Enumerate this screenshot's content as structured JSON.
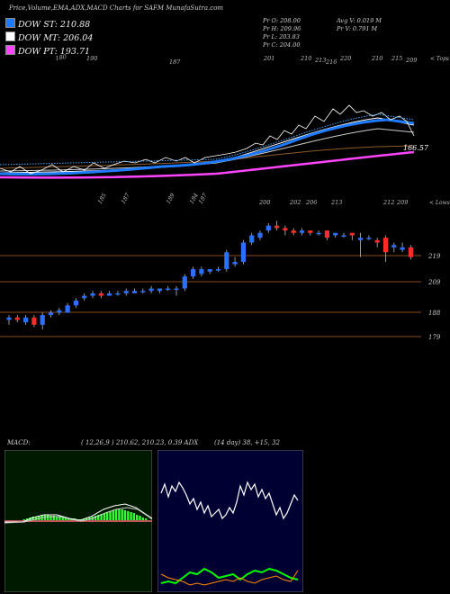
{
  "header": {
    "title": "Price,Volume,EMA,ADX,MACD Charts for SAFM MunafaSutra.com"
  },
  "legend": [
    {
      "label": "DOW ST: 210.88",
      "color": "#1e7bff"
    },
    {
      "label": "DOW MT: 206.04",
      "color": "#ffffff"
    },
    {
      "label": "DOW PT: 193.71",
      "color": "#ff44ff"
    }
  ],
  "ohlc": {
    "open": "Pr   O: 208.00",
    "high": "Pr   H: 209.96",
    "low": "Pr   L: 203.83",
    "close": "Pr   C: 204.00",
    "avg_volume": "Avg V: 0.019 M",
    "volume": "Pr   V: 0.791 M"
  },
  "top_panel": {
    "corner_label": "< Tops",
    "top_labels": [
      "180",
      "190",
      "187",
      "201",
      "210",
      "213",
      "216",
      "220",
      "210",
      "215",
      "209"
    ],
    "bottom_labels": [
      "185",
      "187",
      "189",
      "184",
      "187",
      "200",
      "202",
      "206",
      "213",
      "212",
      "209"
    ],
    "price_label": "166.57",
    "corner_label_bottom": "< Lows"
  },
  "price_panel": {
    "levels": [
      "219",
      "209",
      "188",
      "179"
    ]
  },
  "indicators": {
    "macd_label": "MACD:",
    "macd_values": "( 12,26,9 ) 210.62,  210.23,  0.39 ADX",
    "adx_values": "(14  day) 38,  +15,  32"
  },
  "chart_data": {
    "type": "candlestick",
    "candles": [
      {
        "o": 187,
        "c": 188,
        "h": 189,
        "l": 185
      },
      {
        "o": 188,
        "c": 187,
        "h": 189,
        "l": 186
      },
      {
        "o": 186,
        "c": 188,
        "h": 189,
        "l": 185
      },
      {
        "o": 188,
        "c": 185,
        "h": 189,
        "l": 184
      },
      {
        "o": 185,
        "c": 189,
        "h": 190,
        "l": 183
      },
      {
        "o": 189,
        "c": 190,
        "h": 191,
        "l": 188
      },
      {
        "o": 190,
        "c": 191,
        "h": 192,
        "l": 189
      },
      {
        "o": 190,
        "c": 193,
        "h": 194,
        "l": 190
      },
      {
        "o": 193,
        "c": 195,
        "h": 196,
        "l": 192
      },
      {
        "o": 196,
        "c": 197,
        "h": 198,
        "l": 195
      },
      {
        "o": 197,
        "c": 198,
        "h": 199,
        "l": 196
      },
      {
        "o": 198,
        "c": 197,
        "h": 199,
        "l": 196
      },
      {
        "o": 197,
        "c": 198,
        "h": 199,
        "l": 197
      },
      {
        "o": 198,
        "c": 198,
        "h": 199,
        "l": 197
      },
      {
        "o": 198,
        "c": 199,
        "h": 200,
        "l": 197
      },
      {
        "o": 198,
        "c": 199,
        "h": 200,
        "l": 198
      },
      {
        "o": 199,
        "c": 199,
        "h": 200,
        "l": 198
      },
      {
        "o": 199,
        "c": 200,
        "h": 201,
        "l": 198
      },
      {
        "o": 199,
        "c": 200,
        "h": 200,
        "l": 198
      },
      {
        "o": 200,
        "c": 200,
        "h": 201,
        "l": 199
      },
      {
        "o": 200,
        "c": 200,
        "h": 201,
        "l": 197
      },
      {
        "o": 200,
        "c": 205,
        "h": 206,
        "l": 199
      },
      {
        "o": 205,
        "c": 208,
        "h": 209,
        "l": 204
      },
      {
        "o": 206,
        "c": 208,
        "h": 209,
        "l": 205
      },
      {
        "o": 207,
        "c": 208,
        "h": 208,
        "l": 206
      },
      {
        "o": 208,
        "c": 208,
        "h": 209,
        "l": 207
      },
      {
        "o": 208,
        "c": 215,
        "h": 216,
        "l": 207
      },
      {
        "o": 210,
        "c": 211,
        "h": 213,
        "l": 209
      },
      {
        "o": 211,
        "c": 219,
        "h": 220,
        "l": 210
      },
      {
        "o": 219,
        "c": 222,
        "h": 223,
        "l": 218
      },
      {
        "o": 221,
        "c": 223,
        "h": 224,
        "l": 220
      },
      {
        "o": 224,
        "c": 226,
        "h": 227,
        "l": 223
      },
      {
        "o": 226,
        "c": 225,
        "h": 228,
        "l": 224
      },
      {
        "o": 225,
        "c": 224,
        "h": 226,
        "l": 222
      },
      {
        "o": 224,
        "c": 223,
        "h": 225,
        "l": 222
      },
      {
        "o": 223,
        "c": 224,
        "h": 225,
        "l": 222
      },
      {
        "o": 224,
        "c": 223,
        "h": 224,
        "l": 222
      },
      {
        "o": 223,
        "c": 223,
        "h": 224,
        "l": 222
      },
      {
        "o": 224,
        "c": 221,
        "h": 224,
        "l": 220
      },
      {
        "o": 222,
        "c": 223,
        "h": 223,
        "l": 221
      },
      {
        "o": 222,
        "c": 222,
        "h": 223,
        "l": 221
      },
      {
        "o": 223,
        "c": 222,
        "h": 223,
        "l": 220
      },
      {
        "o": 220,
        "c": 221,
        "h": 223,
        "l": 213
      },
      {
        "o": 221,
        "c": 221,
        "h": 222,
        "l": 220
      },
      {
        "o": 220,
        "c": 219,
        "h": 221,
        "l": 217
      },
      {
        "o": 221,
        "c": 215,
        "h": 222,
        "l": 211
      },
      {
        "o": 217,
        "c": 218,
        "h": 219,
        "l": 215
      },
      {
        "o": 216,
        "c": 217,
        "h": 219,
        "l": 215
      },
      {
        "o": 217,
        "c": 213,
        "h": 218,
        "l": 212
      }
    ]
  }
}
